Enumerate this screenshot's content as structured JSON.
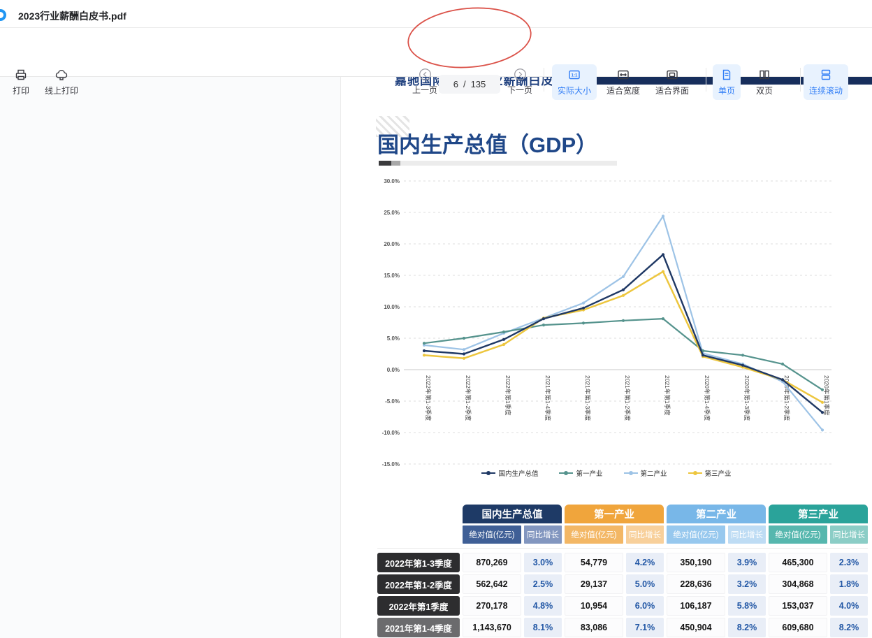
{
  "window": {
    "file_title": "2023行业薪酬白皮书.pdf"
  },
  "toolbar": {
    "print": "打印",
    "online_print": "线上打印",
    "prev_page": "上一页",
    "next_page": "下一页",
    "page_current": "6",
    "page_separator": "/",
    "page_total": "135",
    "actual_size": "实际大小",
    "actual_size_glyph": "1:1",
    "fit_width": "适合宽度",
    "fit_page": "适合界面",
    "single_page": "单页",
    "double_page": "双页",
    "continuous_scroll": "连续滚动",
    "accent_color": "#2e7cf6",
    "active_bg": "#e8f2fe"
  },
  "annotation": {
    "shape": "hand-drawn ellipse",
    "color": "#d84339"
  },
  "document": {
    "brand_line": "嘉驰国际  2023行业薪酬白皮书",
    "page_title": "国内生产总值（GDP）",
    "headbar_color": "#172e5c"
  },
  "chart_data": {
    "type": "line",
    "title": "",
    "xlabel": "",
    "ylabel": "",
    "ylim": [
      -15,
      30
    ],
    "ytick_step": 5,
    "ytick_format": "percent_one_decimal",
    "grid": "horizontal dashed",
    "legend_position": "bottom",
    "categories": [
      "2022年第1-3季度",
      "2022年第1-2季度",
      "2022年第1季度",
      "2021年第1-4季度",
      "2021年第1-3季度",
      "2021年第1-2季度",
      "2021年第1季度",
      "2020年第1-4季度",
      "2020年第1-3季度",
      "2020年第1-2季度",
      "2020年第1季度"
    ],
    "series": [
      {
        "name": "国内生产总值",
        "color": "#1f3864",
        "values": [
          3.0,
          2.5,
          4.8,
          8.1,
          9.8,
          12.7,
          18.3,
          2.3,
          0.7,
          -1.6,
          -6.8
        ]
      },
      {
        "name": "第一产业",
        "color": "#55938d",
        "values": [
          4.2,
          5.0,
          6.0,
          7.1,
          7.4,
          7.8,
          8.1,
          3.0,
          2.3,
          0.9,
          -3.2
        ]
      },
      {
        "name": "第二产业",
        "color": "#9dc3e6",
        "values": [
          3.9,
          3.2,
          5.8,
          8.2,
          10.6,
          14.8,
          24.4,
          2.6,
          0.9,
          -1.9,
          -9.6
        ]
      },
      {
        "name": "第三产业",
        "color": "#edc63e",
        "values": [
          2.3,
          1.8,
          4.0,
          8.2,
          9.5,
          11.8,
          15.6,
          2.1,
          0.4,
          -1.6,
          -5.2
        ]
      }
    ]
  },
  "table": {
    "groups": [
      {
        "label": "国内生产总值",
        "header_color": "#1e3a66",
        "sub1_color": "#3f5f96",
        "sub2_color": "#8296bf"
      },
      {
        "label": "第一产业",
        "header_color": "#f0a53c",
        "sub1_color": "#f3b765",
        "sub2_color": "#f8d09b"
      },
      {
        "label": "第二产业",
        "header_color": "#78b7e8",
        "sub1_color": "#97c8ee",
        "sub2_color": "#bedcf4"
      },
      {
        "label": "第三产业",
        "header_color": "#2aa39a",
        "sub1_color": "#56b7ae",
        "sub2_color": "#8bcdc6"
      }
    ],
    "sub_headers": [
      "绝对值(亿元)",
      "同比增长"
    ],
    "rows": [
      {
        "label": "2022年第1-3季度",
        "label_bg": "#2d2d2f",
        "cells": [
          "870,269",
          "3.0%",
          "54,779",
          "4.2%",
          "350,190",
          "3.9%",
          "465,300",
          "2.3%"
        ]
      },
      {
        "label": "2022年第1-2季度",
        "label_bg": "#2d2d2f",
        "cells": [
          "562,642",
          "2.5%",
          "29,137",
          "5.0%",
          "228,636",
          "3.2%",
          "304,868",
          "1.8%"
        ]
      },
      {
        "label": "2022年第1季度",
        "label_bg": "#2d2d2f",
        "cells": [
          "270,178",
          "4.8%",
          "10,954",
          "6.0%",
          "106,187",
          "5.8%",
          "153,037",
          "4.0%"
        ]
      },
      {
        "label": "2021年第1-4季度",
        "label_bg": "#6b6b6d",
        "cells": [
          "1,143,670",
          "8.1%",
          "83,086",
          "7.1%",
          "450,904",
          "8.2%",
          "609,680",
          "8.2%"
        ]
      },
      {
        "label": "",
        "label_bg": "#4a4a4c",
        "cells": [
          "",
          "",
          "",
          "",
          "",
          "",
          "",
          ""
        ]
      }
    ]
  }
}
